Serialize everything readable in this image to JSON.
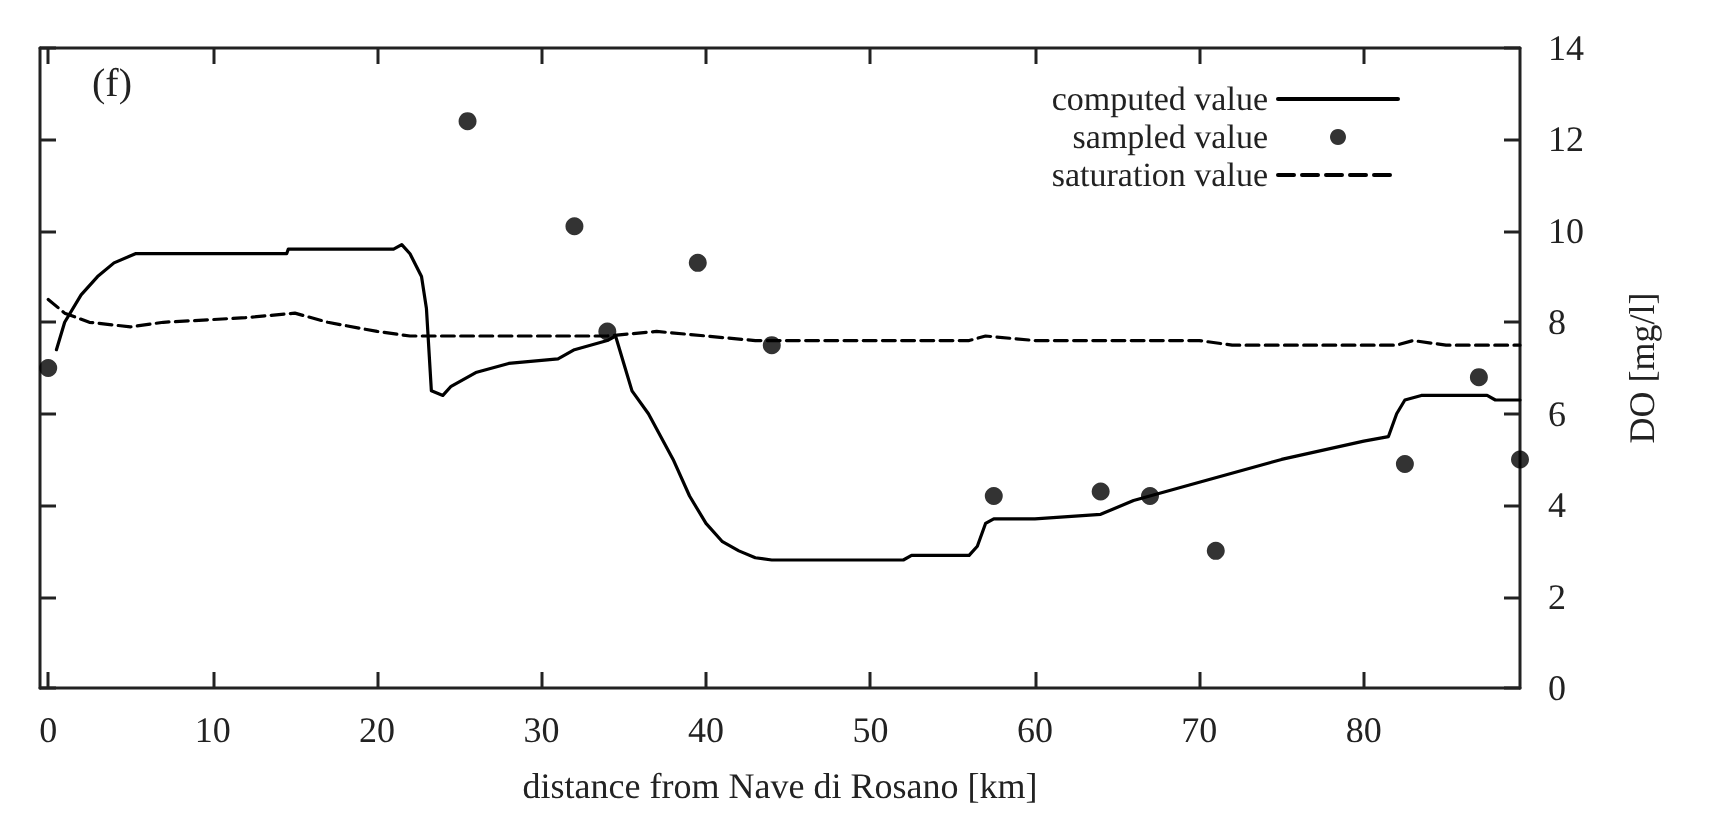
{
  "chart_data": {
    "type": "line",
    "xlabel": "distance from Nave di Rosano [km]",
    "ylabel": "DO [mg/l]",
    "annotations": [
      "(f)"
    ],
    "xlim": [
      -0.5,
      89.5
    ],
    "xticks": [
      0,
      10,
      20,
      30,
      40,
      50,
      60,
      70,
      80
    ],
    "ylim": [
      0,
      14
    ],
    "yticks": [
      0,
      2,
      4,
      6,
      8,
      10,
      12,
      14
    ],
    "grid": false,
    "legend": "top right",
    "series": [
      {
        "name": "computed value",
        "line_style": "solid",
        "color": "#000000",
        "x": [
          0.5,
          1,
          2,
          3,
          4,
          5.3,
          14.5,
          14.6,
          21,
          21.5,
          22,
          22.7,
          23,
          23.3,
          24,
          24.5,
          26,
          28,
          31,
          32,
          34,
          34.5,
          35,
          35.5,
          36.5,
          38,
          39,
          40,
          41,
          42,
          43,
          44,
          52,
          52.5,
          56,
          56.5,
          57,
          57.5,
          60,
          64,
          66,
          70,
          75,
          80,
          81.5,
          82,
          82.5,
          83.5,
          87.5,
          88,
          89.5
        ],
        "values": [
          7.4,
          8.0,
          8.6,
          9.0,
          9.3,
          9.5,
          9.5,
          9.6,
          9.6,
          9.7,
          9.5,
          9.0,
          8.3,
          6.5,
          6.4,
          6.6,
          6.9,
          7.1,
          7.2,
          7.4,
          7.6,
          7.7,
          7.1,
          6.5,
          6.0,
          5.0,
          4.2,
          3.6,
          3.2,
          3.0,
          2.85,
          2.8,
          2.8,
          2.9,
          2.9,
          3.1,
          3.6,
          3.7,
          3.7,
          3.8,
          4.1,
          4.5,
          5.0,
          5.4,
          5.5,
          6.0,
          6.3,
          6.4,
          6.4,
          6.3,
          6.3
        ]
      },
      {
        "name": "sampled value",
        "type": "scatter",
        "marker": "circle",
        "color": "#000000",
        "x": [
          0,
          25.5,
          32,
          34,
          39.5,
          44,
          57.5,
          64,
          67,
          71,
          82.5,
          87,
          89.5
        ],
        "values": [
          7.0,
          12.4,
          10.1,
          7.8,
          9.3,
          7.5,
          4.2,
          4.3,
          4.2,
          3.0,
          4.9,
          6.8,
          5.0
        ]
      },
      {
        "name": "saturation value",
        "type": "line",
        "line_style": "dashed",
        "color": "#000000",
        "x": [
          0,
          1,
          2.5,
          5,
          7,
          12,
          15,
          17,
          20,
          22,
          30,
          34,
          37,
          40,
          43,
          56,
          57,
          60,
          70,
          72,
          82,
          83,
          85,
          89.5
        ],
        "values": [
          8.5,
          8.2,
          8.0,
          7.9,
          8.0,
          8.1,
          8.2,
          8.0,
          7.8,
          7.7,
          7.7,
          7.7,
          7.8,
          7.7,
          7.6,
          7.6,
          7.7,
          7.6,
          7.6,
          7.5,
          7.5,
          7.6,
          7.5,
          7.5
        ]
      }
    ]
  }
}
